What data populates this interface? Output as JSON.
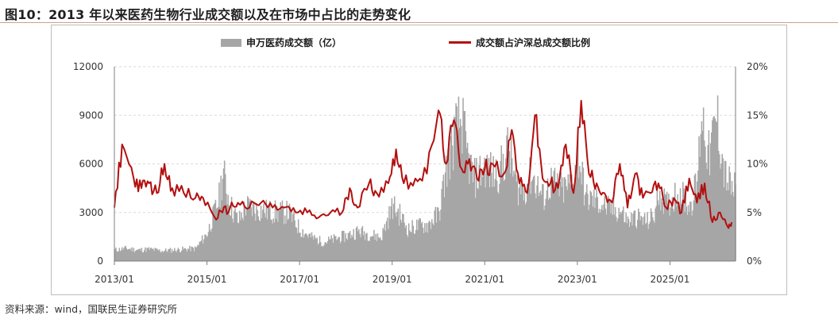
{
  "title": "图10：2013 年以来医药生物行业成交额以及在市场中占比的走势变化",
  "source": "资料来源：wind，国联民生证券研究所",
  "colors": {
    "bars": "#a6a6a6",
    "line": "#b30f0f",
    "axis": "#7f7f7f",
    "grid": "#d9d9d9"
  },
  "chart_data": {
    "type": "bar+line",
    "title": "图10：2013 年以来医药生物行业成交额以及在市场中占比的走势变化",
    "xlabel": "",
    "ylabel_left": "",
    "ylabel_right": "",
    "x_range": [
      "2013-01",
      "2026-06"
    ],
    "x_ticks": [
      "2013/01",
      "2015/01",
      "2017/01",
      "2019/01",
      "2021/01",
      "2023/01",
      "2025/01"
    ],
    "y_left_lim": [
      0,
      12000
    ],
    "y_left_ticks": [
      "0",
      "3000",
      "6000",
      "9000",
      "12000"
    ],
    "y_right_lim": [
      0,
      20
    ],
    "y_right_ticks": [
      "0%",
      "5%",
      "10%",
      "15%",
      "20%"
    ],
    "legend_position": "top-center",
    "grid": "horizontal",
    "series": [
      {
        "name": "申万医药成交额（亿）",
        "type": "bar",
        "axis": "left",
        "x": [
          "2013-01",
          "2013-04",
          "2013-07",
          "2013-10",
          "2014-01",
          "2014-04",
          "2014-07",
          "2014-10",
          "2015-01",
          "2015-02",
          "2015-04",
          "2015-05",
          "2015-06",
          "2015-07",
          "2015-09",
          "2015-11",
          "2016-01",
          "2016-04",
          "2016-07",
          "2016-10",
          "2017-01",
          "2017-04",
          "2017-07",
          "2017-10",
          "2018-01",
          "2018-04",
          "2018-07",
          "2018-10",
          "2019-01",
          "2019-03",
          "2019-05",
          "2019-07",
          "2019-10",
          "2020-01",
          "2020-03",
          "2020-05",
          "2020-07",
          "2020-08",
          "2020-10",
          "2021-01",
          "2021-03",
          "2021-05",
          "2021-07",
          "2021-09",
          "2021-11",
          "2022-01",
          "2022-04",
          "2022-06",
          "2022-09",
          "2022-11",
          "2022-12",
          "2023-01",
          "2023-03",
          "2023-06",
          "2023-09",
          "2023-12",
          "2024-02",
          "2024-04",
          "2024-07",
          "2024-09",
          "2024-10",
          "2024-12",
          "2025-03",
          "2025-06",
          "2025-08",
          "2025-09",
          "2025-11",
          "2026-01",
          "2026-03",
          "2026-05"
        ],
        "values": [
          700,
          800,
          700,
          750,
          650,
          700,
          750,
          800,
          1800,
          2500,
          4000,
          5700,
          4500,
          3500,
          2500,
          3500,
          3300,
          3200,
          3100,
          3100,
          2000,
          1500,
          1200,
          1400,
          1600,
          1900,
          1700,
          1500,
          3500,
          2900,
          2000,
          2200,
          2300,
          3000,
          6000,
          8000,
          9000,
          7000,
          5200,
          6000,
          5500,
          5800,
          7200,
          4800,
          4500,
          5500,
          4000,
          5000,
          4500,
          4800,
          5500,
          7000,
          4000,
          3800,
          3300,
          3200,
          2500,
          2800,
          2500,
          3000,
          4500,
          3500,
          4500,
          3500,
          5000,
          9700,
          6500,
          9200,
          5500,
          4500
        ]
      },
      {
        "name": "成交额占沪深总成交额比例",
        "type": "line",
        "axis": "right",
        "x": [
          "2013-01",
          "2013-03",
          "2013-06",
          "2013-08",
          "2013-10",
          "2013-12",
          "2014-02",
          "2014-04",
          "2014-07",
          "2014-10",
          "2014-12",
          "2015-03",
          "2015-05",
          "2015-07",
          "2015-09",
          "2015-12",
          "2016-03",
          "2016-06",
          "2016-09",
          "2016-12",
          "2017-03",
          "2017-06",
          "2017-09",
          "2017-12",
          "2018-02",
          "2018-04",
          "2018-07",
          "2018-09",
          "2018-12",
          "2019-02",
          "2019-04",
          "2019-07",
          "2019-10",
          "2020-01",
          "2020-03",
          "2020-05",
          "2020-07",
          "2020-09",
          "2020-11",
          "2021-01",
          "2021-03",
          "2021-06",
          "2021-08",
          "2021-10",
          "2021-12",
          "2022-02",
          "2022-04",
          "2022-06",
          "2022-08",
          "2022-10",
          "2022-12",
          "2023-02",
          "2023-04",
          "2023-06",
          "2023-08",
          "2023-10",
          "2023-12",
          "2024-02",
          "2024-04",
          "2024-06",
          "2024-08",
          "2024-10",
          "2024-12",
          "2025-02",
          "2025-04",
          "2025-06",
          "2025-08",
          "2025-10",
          "2025-12",
          "2026-02",
          "2026-04",
          "2026-05"
        ],
        "values": [
          5.5,
          12.0,
          8.5,
          7.5,
          8.0,
          7.0,
          10.0,
          7.5,
          7.0,
          6.5,
          6.5,
          4.5,
          5.0,
          5.5,
          6.0,
          5.5,
          6.0,
          5.5,
          5.5,
          5.0,
          5.0,
          4.5,
          5.0,
          5.0,
          7.5,
          5.5,
          8.0,
          7.0,
          8.0,
          11.5,
          8.0,
          8.5,
          9.0,
          15.5,
          10.0,
          14.5,
          9.5,
          10.5,
          8.5,
          9.5,
          10.0,
          9.0,
          13.5,
          8.0,
          7.0,
          15.0,
          8.5,
          8.0,
          7.5,
          12.0,
          7.0,
          16.5,
          9.0,
          8.0,
          7.0,
          6.0,
          10.0,
          5.5,
          9.0,
          6.5,
          7.0,
          8.0,
          5.5,
          6.5,
          5.0,
          8.5,
          6.0,
          8.0,
          4.0,
          5.0,
          3.5,
          4.0
        ]
      }
    ]
  }
}
